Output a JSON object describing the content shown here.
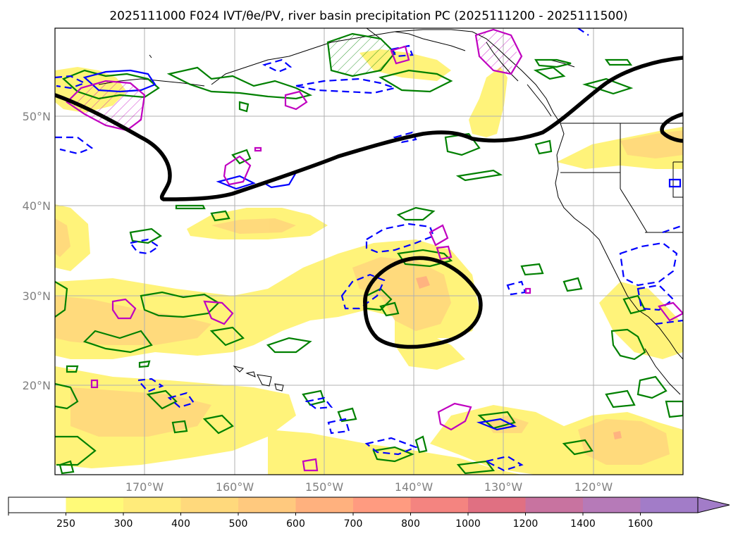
{
  "title": "2025111000 F024 IVT/θe/PV, river basin precipitation PC (2025111200 - 2025111500)",
  "map": {
    "lat_labels": [
      "50°N",
      "40°N",
      "30°N",
      "20°N"
    ],
    "lon_labels": [
      "170°W",
      "160°W",
      "150°W",
      "140°W",
      "130°W",
      "120°W"
    ],
    "label_color": "#808080",
    "grid_color": "#b0b0b0"
  },
  "colorbar": {
    "ticks": [
      "250",
      "300",
      "400",
      "500",
      "600",
      "700",
      "800",
      "1000",
      "1200",
      "1400",
      "1600"
    ],
    "colors": [
      "#ffffff",
      "#fffa78",
      "#ffeb7a",
      "#ffd97c",
      "#ffc97e",
      "#ffb17e",
      "#ff9b80",
      "#f48480",
      "#e07082",
      "#c873a0",
      "#b67ab8",
      "#a27cc8"
    ]
  },
  "legend_colors": {
    "ivt_fill": "#ffe27a",
    "theta_e": "#008000",
    "pv_positive": "#0000ff",
    "pv_negative": "#c000c0",
    "jet": "#000000",
    "coast": "#000000"
  }
}
